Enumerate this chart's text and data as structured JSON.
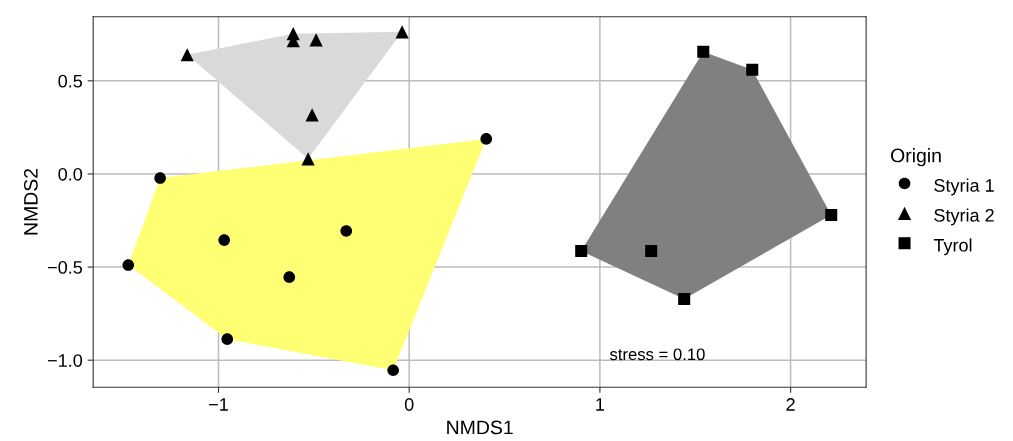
{
  "chart_data": {
    "type": "scatter",
    "xlabel": "NMDS1",
    "ylabel": "NMDS2",
    "legend_title": "Origin",
    "legend": "right",
    "grid": true,
    "xlim": [
      -1.657,
      2.396
    ],
    "xticks": [
      {
        "value": -1,
        "label": "−1"
      },
      0,
      1,
      2
    ],
    "ylim": [
      -1.145,
      0.844
    ],
    "yticks": [
      {
        "value": -1,
        "label": "−1.0"
      },
      {
        "value": -0.5,
        "label": "−0.5"
      },
      {
        "value": 0,
        "label": "0.0"
      },
      0.5
    ],
    "annotations": [
      "stress = 0.10"
    ],
    "series": [
      {
        "type": "area",
        "color": "#ffff73",
        "x": [
          -1.473,
          -1.306,
          0.404,
          -0.084,
          -0.954
        ],
        "values": [
          -0.489,
          -0.022,
          0.188,
          -1.054,
          -0.887
        ]
      },
      {
        "type": "area",
        "color": "#d9d9d9",
        "x": [
          -1.164,
          -0.608,
          -0.037,
          -0.53
        ],
        "values": [
          0.64,
          0.753,
          0.763,
          0.081
        ]
      },
      {
        "type": "area",
        "color": "#808080",
        "x": [
          0.902,
          1.542,
          1.799,
          2.213,
          1.442
        ],
        "values": [
          -0.414,
          0.656,
          0.559,
          -0.22,
          -0.672
        ]
      },
      {
        "name": "Styria 1",
        "color": "#000000",
        "marker": "circle",
        "x": [
          0.404,
          -1.306,
          -0.97,
          -0.33,
          -1.473,
          -0.629,
          -0.954,
          -0.084
        ],
        "values": [
          0.188,
          -0.022,
          -0.355,
          -0.306,
          -0.489,
          -0.554,
          -0.887,
          -1.054
        ]
      },
      {
        "name": "Styria 2",
        "color": "#000000",
        "marker": "triangle",
        "x": [
          -1.164,
          -0.608,
          -0.608,
          -0.488,
          -0.037,
          -0.509,
          -0.53
        ],
        "values": [
          0.64,
          0.753,
          0.715,
          0.72,
          0.763,
          0.317,
          0.081
        ]
      },
      {
        "name": "Tyrol",
        "color": "#000000",
        "marker": "square",
        "x": [
          1.542,
          1.799,
          2.213,
          0.902,
          1.269,
          1.442
        ],
        "values": [
          0.656,
          0.559,
          -0.22,
          -0.414,
          -0.414,
          -0.672
        ]
      }
    ]
  }
}
